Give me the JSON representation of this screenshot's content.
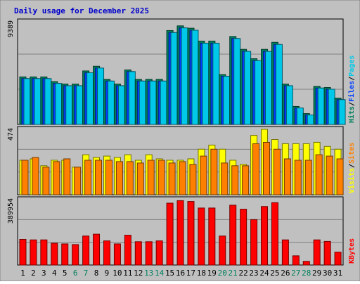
{
  "title": "Daily usage for December 2025",
  "colors": {
    "background": "#c0c0c0",
    "title": "#0000cc",
    "hits": "#00805c",
    "files": "#0040ff",
    "pages": "#00c8e8",
    "visits": "#ffff00",
    "sites": "#ff8000",
    "kbytes": "#ff0000",
    "weekend_day": "#00805c",
    "weekday": "#000000"
  },
  "chart_data": {
    "type": "bar",
    "categories": [
      "1",
      "2",
      "3",
      "4",
      "5",
      "6",
      "7",
      "8",
      "9",
      "10",
      "11",
      "12",
      "13",
      "14",
      "15",
      "16",
      "17",
      "18",
      "19",
      "20",
      "21",
      "22",
      "23",
      "24",
      "25",
      "26",
      "27",
      "28",
      "29",
      "30",
      "31"
    ],
    "weekend_days": [
      "6",
      "7",
      "13",
      "14",
      "20",
      "21",
      "27",
      "28"
    ],
    "panels": [
      {
        "name": "hits-files-pages",
        "max_label": "9389",
        "legend": [
          {
            "text": "Hits",
            "color_key": "hits"
          },
          {
            "text": "/",
            "color_key": "weekday"
          },
          {
            "text": "Files",
            "color_key": "files"
          },
          {
            "text": "/",
            "color_key": "weekday"
          },
          {
            "text": "Pages",
            "color_key": "pages"
          }
        ],
        "ylim": [
          0,
          9389
        ],
        "series": [
          {
            "name": "Hits",
            "color_key": "hits",
            "values": [
              4470,
              4470,
              4470,
              4030,
              3800,
              3800,
              5030,
              5470,
              4240,
              3800,
              5130,
              4240,
              4240,
              4240,
              8830,
              9270,
              9050,
              7840,
              7840,
              4690,
              8270,
              7060,
              6180,
              7060,
              7720,
              3800,
              1690,
              1020,
              3580,
              3470,
              2480
            ]
          },
          {
            "name": "Files",
            "color_key": "files",
            "values": [
              4310,
              4310,
              4310,
              3860,
              3640,
              3640,
              4860,
              5300,
              4080,
              3640,
              4970,
              4080,
              4080,
              4080,
              8640,
              9080,
              8860,
              7640,
              7640,
              4530,
              8080,
              6870,
              6000,
              6870,
              7520,
              3640,
              1550,
              890,
              3420,
              3310,
              2330
            ]
          },
          {
            "name": "Pages",
            "color_key": "pages",
            "values": [
              4310,
              4310,
              4310,
              3860,
              3640,
              3640,
              4860,
              5300,
              4080,
              3640,
              4970,
              4080,
              4080,
              4080,
              8640,
              9080,
              8860,
              7640,
              7640,
              4530,
              8080,
              6870,
              6000,
              6870,
              7520,
              3640,
              1550,
              890,
              3420,
              3310,
              2330
            ]
          }
        ]
      },
      {
        "name": "visits-sites",
        "max_label": "474",
        "legend": [
          {
            "text": "Visits",
            "color_key": "visits"
          },
          {
            "text": "/",
            "color_key": "weekday"
          },
          {
            "text": "Sites",
            "color_key": "sites"
          }
        ],
        "ylim": [
          0,
          474
        ],
        "series": [
          {
            "name": "Visits",
            "color_key": "visits",
            "values": [
              250,
              260,
              210,
              250,
              250,
              200,
              290,
              270,
              280,
              270,
              290,
              250,
              290,
              260,
              250,
              250,
              260,
              330,
              360,
              330,
              250,
              220,
              430,
              474,
              400,
              370,
              370,
              370,
              380,
              350,
              330
            ]
          },
          {
            "name": "Sites",
            "color_key": "sites",
            "values": [
              250,
              270,
              200,
              240,
              260,
              200,
              250,
              250,
              250,
              240,
              240,
              230,
              250,
              250,
              230,
              240,
              220,
              280,
              330,
              230,
              210,
              210,
              370,
              380,
              330,
              260,
              250,
              250,
              290,
              280,
              260
            ]
          }
        ]
      },
      {
        "name": "kbytes",
        "max_label": "389954",
        "legend": [
          {
            "text": "KBytes",
            "color_key": "kbytes"
          }
        ],
        "ylim": [
          0,
          389954
        ],
        "series": [
          {
            "name": "KBytes",
            "color_key": "kbytes",
            "values": [
              153000,
              150000,
              150000,
              130000,
              126000,
              122000,
              173000,
              184000,
              144000,
              126000,
              178000,
              139000,
              139000,
              144000,
              369000,
              384000,
              379000,
              340000,
              340000,
              173000,
              357000,
              333000,
              271000,
              349000,
              372000,
              150000,
              55000,
              22000,
              150000,
              141000,
              77000
            ]
          }
        ]
      }
    ]
  }
}
